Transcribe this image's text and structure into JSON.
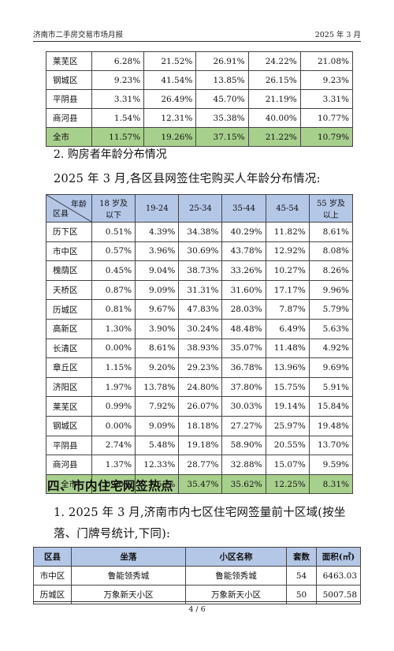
{
  "header": {
    "title": "济南市二手房交易市场月报",
    "date": "2025 年 3 月"
  },
  "table1": {
    "rows": [
      {
        "district": "莱芜区",
        "values": [
          "6.28%",
          "21.52%",
          "26.91%",
          "24.22%",
          "21.08%"
        ]
      },
      {
        "district": "钢城区",
        "values": [
          "9.23%",
          "41.54%",
          "13.85%",
          "26.15%",
          "9.23%"
        ]
      },
      {
        "district": "平阴县",
        "values": [
          "3.31%",
          "26.49%",
          "45.70%",
          "21.19%",
          "3.31%"
        ]
      },
      {
        "district": "商河县",
        "values": [
          "1.54%",
          "12.31%",
          "35.38%",
          "40.00%",
          "10.77%"
        ]
      }
    ],
    "total": {
      "district": "全市",
      "values": [
        "11.57%",
        "19.26%",
        "37.15%",
        "21.22%",
        "10.79%"
      ]
    }
  },
  "section2": {
    "heading": "2. 购房者年龄分布情况",
    "intro": "2025 年 3 月,各区县网签住宅购买人年龄分布情况:"
  },
  "table2": {
    "corner_top": "年龄",
    "corner_bottom": "区县",
    "columns": [
      "18 岁及\n以下",
      "19-24",
      "25-34",
      "35-44",
      "45-54",
      "55 岁及\n以上"
    ],
    "rows": [
      {
        "district": "历下区",
        "values": [
          "0.51%",
          "4.39%",
          "34.38%",
          "40.29%",
          "11.82%",
          "8.61%"
        ]
      },
      {
        "district": "市中区",
        "values": [
          "0.57%",
          "3.96%",
          "30.69%",
          "43.78%",
          "12.92%",
          "8.08%"
        ]
      },
      {
        "district": "槐荫区",
        "values": [
          "0.45%",
          "9.04%",
          "38.73%",
          "33.26%",
          "10.27%",
          "8.26%"
        ]
      },
      {
        "district": "天桥区",
        "values": [
          "0.87%",
          "9.09%",
          "31.31%",
          "31.60%",
          "17.17%",
          "9.96%"
        ]
      },
      {
        "district": "历城区",
        "values": [
          "0.81%",
          "9.67%",
          "47.83%",
          "28.03%",
          "7.87%",
          "5.79%"
        ]
      },
      {
        "district": "高新区",
        "values": [
          "1.30%",
          "3.90%",
          "30.24%",
          "48.48%",
          "6.49%",
          "5.63%"
        ]
      },
      {
        "district": "长清区",
        "values": [
          "0.00%",
          "8.61%",
          "38.93%",
          "35.07%",
          "11.48%",
          "4.92%"
        ]
      },
      {
        "district": "章丘区",
        "values": [
          "1.15%",
          "9.20%",
          "29.23%",
          "36.78%",
          "13.96%",
          "9.69%"
        ]
      },
      {
        "district": "济阳区",
        "values": [
          "1.97%",
          "13.78%",
          "24.80%",
          "37.80%",
          "15.75%",
          "5.91%"
        ]
      },
      {
        "district": "莱芜区",
        "values": [
          "0.99%",
          "7.92%",
          "26.07%",
          "30.03%",
          "19.14%",
          "15.84%"
        ]
      },
      {
        "district": "钢城区",
        "values": [
          "0.00%",
          "9.09%",
          "18.18%",
          "27.27%",
          "25.97%",
          "19.48%"
        ]
      },
      {
        "district": "平阴县",
        "values": [
          "2.74%",
          "5.48%",
          "19.18%",
          "58.90%",
          "20.55%",
          "13.70%"
        ]
      },
      {
        "district": "商河县",
        "values": [
          "1.37%",
          "12.33%",
          "28.77%",
          "32.88%",
          "15.07%",
          "9.59%"
        ]
      }
    ],
    "total": {
      "district": "全市",
      "values": [
        "0.80%",
        "7.55%",
        "35.47%",
        "35.62%",
        "12.25%",
        "8.31%"
      ]
    }
  },
  "section4": {
    "heading": "四、市内住宅网签热点",
    "intro": "1. 2025 年 3 月,济南市内七区住宅网签量前十区域(按坐落、门牌号统计,下同):"
  },
  "table3": {
    "columns": [
      "区县",
      "坐落",
      "小区名称",
      "套数",
      "面积(㎡)"
    ],
    "rows": [
      {
        "district": "市中区",
        "location": "鲁能领秀城",
        "community": "鲁能领秀城",
        "count": "54",
        "area": "6463.03"
      },
      {
        "district": "历城区",
        "location": "万象新天小区",
        "community": "万象新天小区",
        "count": "50",
        "area": "5007.58"
      }
    ]
  },
  "footer": {
    "page": "4 / 6"
  }
}
